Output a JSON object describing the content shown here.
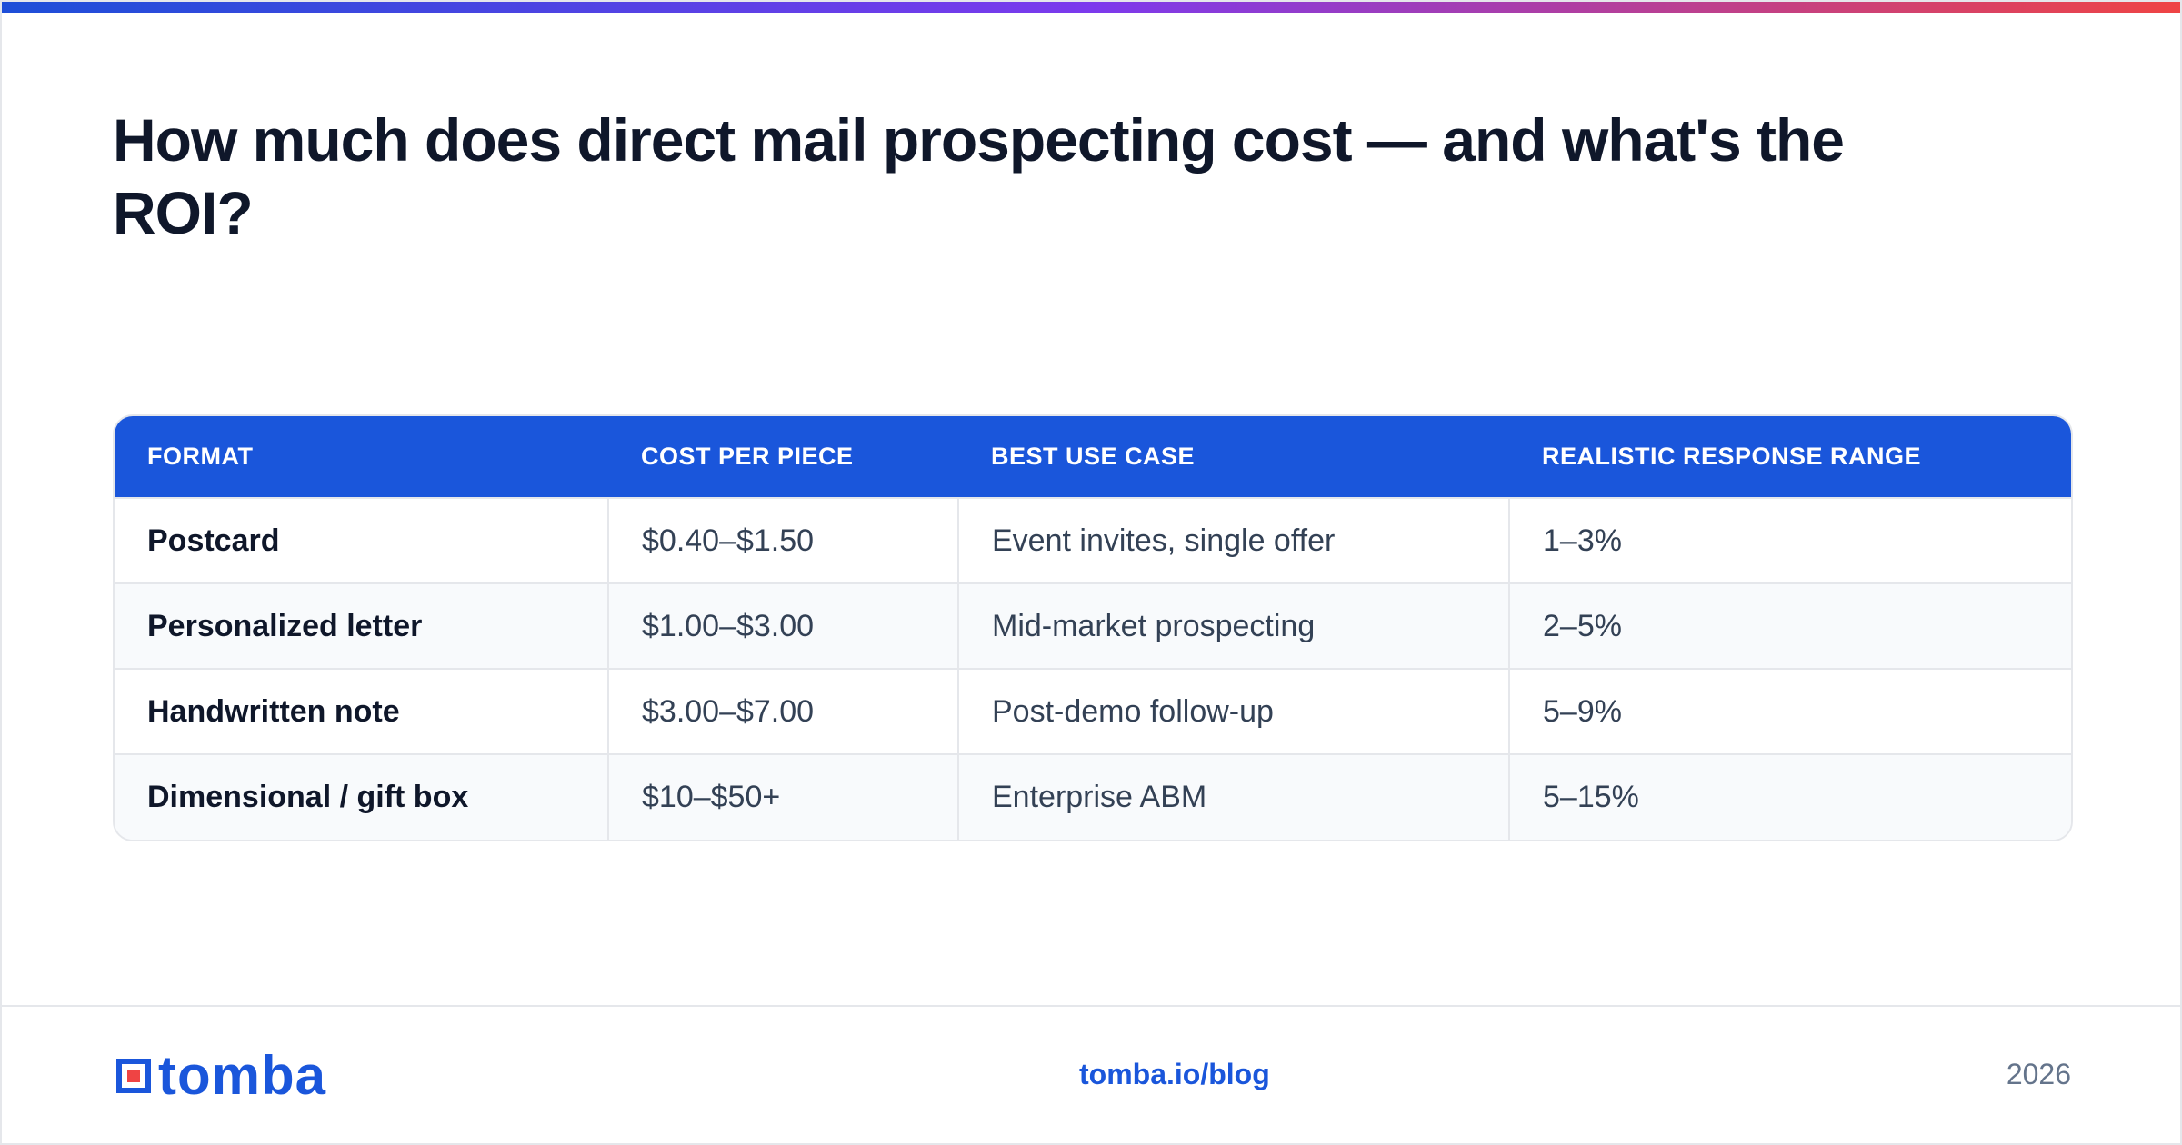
{
  "title": "How much does direct mail prospecting cost — and what's the ROI?",
  "table": {
    "headers": [
      "FORMAT",
      "COST PER PIECE",
      "BEST USE CASE",
      "REALISTIC RESPONSE RANGE"
    ],
    "rows": [
      [
        "Postcard",
        "$0.40–$1.50",
        "Event invites, single offer",
        "1–3%"
      ],
      [
        "Personalized letter",
        "$1.00–$3.00",
        "Mid-market prospecting",
        "2–5%"
      ],
      [
        "Handwritten note",
        "$3.00–$7.00",
        "Post-demo follow-up",
        "5–9%"
      ],
      [
        "Dimensional / gift box",
        "$10–$50+",
        "Enterprise ABM",
        "5–15%"
      ]
    ]
  },
  "footer": {
    "logo_text": "tomba",
    "link": "tomba.io/blog",
    "year": "2026"
  },
  "colors": {
    "brand_blue": "#1a56db",
    "logo_accent": "#ef4444",
    "title": "#0f172a"
  }
}
